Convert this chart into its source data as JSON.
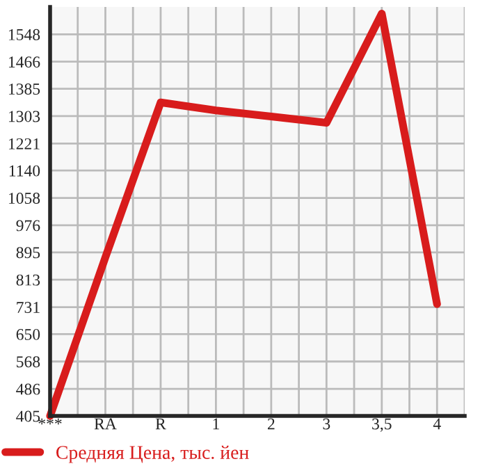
{
  "chart_data": {
    "type": "line",
    "categories": [
      "***",
      "RA",
      "R",
      "1",
      "2",
      "3",
      "3,5",
      "4"
    ],
    "series": [
      {
        "name": "Средняя Цена, тыс. йен",
        "color": "#d81c1c",
        "values": [
          405,
          880,
          1344,
          1320,
          1302,
          1283,
          1610,
          740
        ]
      }
    ],
    "ylim": [
      405,
      1630
    ],
    "yticks": [
      405,
      486,
      568,
      650,
      731,
      813,
      895,
      976,
      1058,
      1140,
      1221,
      1303,
      1385,
      1466,
      1548
    ],
    "grid": true,
    "legend": "bottom left",
    "marker": "none",
    "line_style": "solid"
  }
}
